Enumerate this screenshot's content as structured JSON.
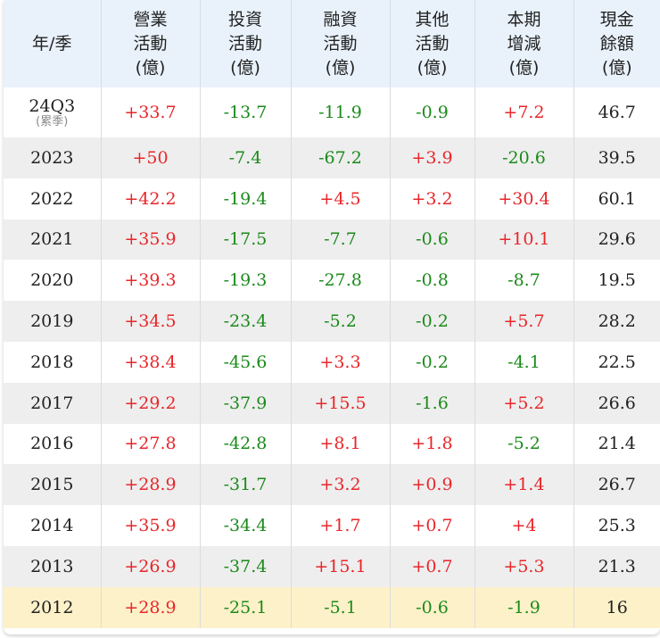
{
  "headers": [
    [
      "年/季"
    ],
    [
      "營業",
      "活動",
      "(億)"
    ],
    [
      "投資",
      "活動",
      "(億)"
    ],
    [
      "融資",
      "活動",
      "(億)"
    ],
    [
      "其他",
      "活動",
      "(億)"
    ],
    [
      "本期",
      "增減",
      "(億)"
    ],
    [
      "現金",
      "餘額",
      "(億)"
    ]
  ],
  "rows": [
    {
      "year": "24Q3",
      "note": "(累季)",
      "values": [
        "+33.7",
        "-13.7",
        "-11.9",
        "-0.9",
        "+7.2",
        "46.7"
      ]
    },
    {
      "year": "2023",
      "values": [
        "+50",
        "-7.4",
        "-67.2",
        "+3.9",
        "-20.6",
        "39.5"
      ]
    },
    {
      "year": "2022",
      "values": [
        "+42.2",
        "-19.4",
        "+4.5",
        "+3.2",
        "+30.4",
        "60.1"
      ]
    },
    {
      "year": "2021",
      "values": [
        "+35.9",
        "-17.5",
        "-7.7",
        "-0.6",
        "+10.1",
        "29.6"
      ]
    },
    {
      "year": "2020",
      "values": [
        "+39.3",
        "-19.3",
        "-27.8",
        "-0.8",
        "-8.7",
        "19.5"
      ]
    },
    {
      "year": "2019",
      "values": [
        "+34.5",
        "-23.4",
        "-5.2",
        "-0.2",
        "+5.7",
        "28.2"
      ]
    },
    {
      "year": "2018",
      "values": [
        "+38.4",
        "-45.6",
        "+3.3",
        "-0.2",
        "-4.1",
        "22.5"
      ]
    },
    {
      "year": "2017",
      "values": [
        "+29.2",
        "-37.9",
        "+15.5",
        "-1.6",
        "+5.2",
        "26.6"
      ]
    },
    {
      "year": "2016",
      "values": [
        "+27.8",
        "-42.8",
        "+8.1",
        "+1.8",
        "-5.2",
        "21.4"
      ]
    },
    {
      "year": "2015",
      "values": [
        "+28.9",
        "-31.7",
        "+3.2",
        "+0.9",
        "+1.4",
        "26.7"
      ]
    },
    {
      "year": "2014",
      "values": [
        "+35.9",
        "-34.4",
        "+1.7",
        "+0.7",
        "+4",
        "25.3"
      ]
    },
    {
      "year": "2013",
      "values": [
        "+26.9",
        "-37.4",
        "+15.1",
        "+0.7",
        "+5.3",
        "21.3"
      ]
    },
    {
      "year": "2012",
      "values": [
        "+28.9",
        "-25.1",
        "-5.1",
        "-0.6",
        "-1.9",
        "16"
      ]
    }
  ],
  "colors": {
    "positive": "#e8262a",
    "negative": "#1a8a1a",
    "header_bg": "#e9f2fb",
    "stripe_bg": "#eeeeee",
    "highlight_row_bg": "#fdf1c9"
  }
}
